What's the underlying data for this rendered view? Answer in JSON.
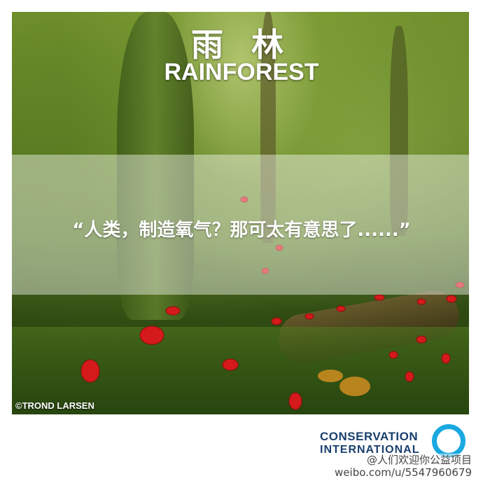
{
  "poster": {
    "title_cn": "雨 林",
    "title_en": "RAINFOREST",
    "quote": "“人类，制造氧气？那可太有意思了......”",
    "photo_credit": "©TROND LARSEN"
  },
  "logo": {
    "line1": "CONSERVATION",
    "line2": "INTERNATIONAL",
    "ring_color": "#19a9e0",
    "text_color": "#1a3f6e"
  },
  "watermark": {
    "handle": "@人们欢迎你公益项目",
    "url": "weibo.com/u/5547960679"
  }
}
